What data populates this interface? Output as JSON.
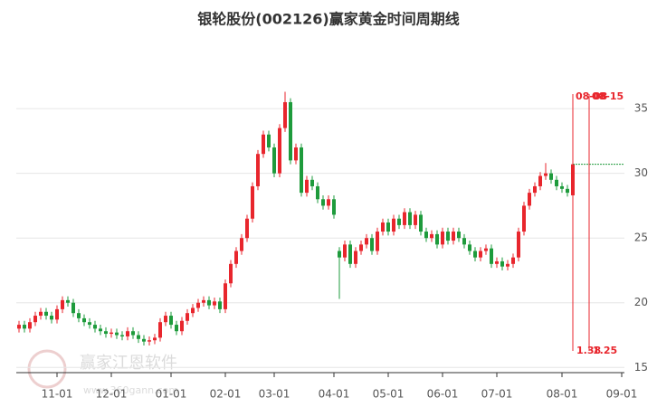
{
  "chart_data": {
    "type": "candlestick",
    "title": "银轮股份(002126)赢家黄金时间周期线",
    "watermark": {
      "name": "赢家江恩软件",
      "url": "www.360gann.com"
    },
    "categories": [
      null,
      null,
      null,
      null,
      null,
      null,
      null,
      "11-01",
      null,
      null,
      null,
      null,
      null,
      null,
      null,
      null,
      null,
      "12-01",
      null,
      null,
      null,
      null,
      null,
      null,
      null,
      null,
      null,
      null,
      "01-01",
      null,
      null,
      null,
      null,
      null,
      null,
      null,
      null,
      null,
      "02-01",
      null,
      null,
      null,
      null,
      null,
      null,
      null,
      null,
      "03-01",
      null,
      null,
      null,
      null,
      null,
      null,
      null,
      null,
      null,
      null,
      "04-01",
      null,
      null,
      null,
      null,
      null,
      null,
      null,
      null,
      null,
      "05-01",
      null,
      null,
      null,
      null,
      null,
      null,
      null,
      null,
      null,
      "06-01",
      null,
      null,
      null,
      null,
      null,
      null,
      null,
      null,
      null,
      "07-01",
      null,
      null,
      null,
      null,
      null,
      null,
      null,
      null,
      null,
      null,
      null,
      "08-01",
      null,
      null,
      null,
      null,
      null,
      null,
      null,
      null,
      null,
      null,
      "09-01"
    ],
    "ohlc": [
      [
        18.0,
        18.6,
        17.7,
        18.3
      ],
      [
        18.3,
        18.6,
        17.7,
        18.0
      ],
      [
        18.0,
        18.8,
        17.7,
        18.5
      ],
      [
        18.5,
        19.3,
        18.2,
        19.0
      ],
      [
        19.0,
        19.6,
        18.7,
        19.3
      ],
      [
        19.3,
        19.6,
        18.7,
        19.0
      ],
      [
        19.0,
        19.3,
        18.4,
        18.7
      ],
      [
        18.7,
        19.8,
        18.4,
        19.5
      ],
      [
        19.5,
        20.5,
        19.2,
        20.2
      ],
      [
        20.2,
        20.5,
        19.7,
        20.0
      ],
      [
        20.0,
        20.3,
        18.9,
        19.2
      ],
      [
        19.2,
        19.5,
        18.5,
        18.8
      ],
      [
        18.8,
        19.1,
        18.2,
        18.5
      ],
      [
        18.5,
        18.8,
        18.0,
        18.3
      ],
      [
        18.3,
        18.6,
        17.7,
        18.0
      ],
      [
        18.0,
        18.3,
        17.5,
        17.8
      ],
      [
        17.8,
        18.1,
        17.3,
        17.6
      ],
      [
        17.6,
        18.0,
        17.3,
        17.7
      ],
      [
        17.7,
        18.0,
        17.2,
        17.5
      ],
      [
        17.5,
        17.8,
        17.1,
        17.4
      ],
      [
        17.4,
        18.1,
        17.1,
        17.8
      ],
      [
        17.8,
        18.1,
        17.2,
        17.5
      ],
      [
        17.5,
        17.8,
        16.9,
        17.2
      ],
      [
        17.2,
        17.5,
        16.7,
        17.0
      ],
      [
        17.0,
        17.4,
        16.7,
        17.1
      ],
      [
        17.1,
        17.6,
        16.8,
        17.3
      ],
      [
        17.3,
        18.8,
        17.0,
        18.5
      ],
      [
        18.5,
        19.3,
        18.2,
        19.0
      ],
      [
        19.0,
        19.3,
        18.0,
        18.3
      ],
      [
        18.3,
        18.6,
        17.5,
        17.8
      ],
      [
        17.8,
        18.9,
        17.5,
        18.6
      ],
      [
        18.6,
        19.5,
        18.3,
        19.2
      ],
      [
        19.2,
        19.9,
        18.9,
        19.6
      ],
      [
        19.6,
        20.3,
        19.3,
        20.0
      ],
      [
        20.0,
        20.5,
        19.7,
        20.2
      ],
      [
        20.2,
        20.5,
        19.5,
        19.8
      ],
      [
        19.8,
        20.4,
        19.5,
        20.1
      ],
      [
        20.1,
        20.4,
        19.2,
        19.5
      ],
      [
        19.5,
        21.8,
        19.2,
        21.5
      ],
      [
        21.5,
        23.3,
        21.2,
        23.0
      ],
      [
        23.0,
        24.3,
        22.7,
        24.0
      ],
      [
        24.0,
        25.3,
        23.7,
        25.0
      ],
      [
        25.0,
        26.8,
        24.7,
        26.5
      ],
      [
        26.5,
        29.3,
        26.2,
        29.0
      ],
      [
        29.0,
        31.8,
        28.7,
        31.5
      ],
      [
        31.5,
        33.3,
        31.2,
        33.0
      ],
      [
        33.0,
        33.3,
        31.7,
        32.0
      ],
      [
        32.0,
        32.3,
        29.7,
        30.0
      ],
      [
        30.0,
        33.8,
        29.7,
        33.5
      ],
      [
        33.5,
        36.3,
        33.2,
        35.5
      ],
      [
        35.5,
        35.8,
        30.7,
        31.0
      ],
      [
        31.0,
        32.3,
        30.7,
        32.0
      ],
      [
        32.0,
        32.3,
        28.2,
        28.5
      ],
      [
        28.5,
        29.8,
        28.2,
        29.5
      ],
      [
        29.5,
        29.8,
        28.7,
        29.0
      ],
      [
        29.0,
        29.3,
        27.7,
        28.0
      ],
      [
        28.0,
        28.3,
        27.2,
        27.5
      ],
      [
        27.5,
        28.3,
        27.2,
        28.0
      ],
      [
        28.0,
        28.3,
        26.5,
        26.8
      ],
      [
        24.0,
        24.3,
        20.3,
        23.5
      ],
      [
        23.5,
        24.8,
        23.2,
        24.5
      ],
      [
        24.5,
        24.8,
        22.7,
        23.0
      ],
      [
        23.0,
        24.3,
        22.7,
        24.0
      ],
      [
        24.0,
        24.8,
        23.7,
        24.5
      ],
      [
        24.5,
        25.3,
        24.2,
        25.0
      ],
      [
        25.0,
        25.3,
        23.7,
        24.0
      ],
      [
        24.0,
        25.8,
        23.7,
        25.5
      ],
      [
        25.5,
        26.5,
        25.2,
        26.2
      ],
      [
        26.2,
        26.5,
        25.2,
        25.5
      ],
      [
        25.5,
        26.8,
        25.2,
        26.5
      ],
      [
        26.5,
        26.8,
        25.7,
        26.0
      ],
      [
        26.0,
        27.3,
        25.7,
        27.0
      ],
      [
        27.0,
        27.3,
        25.7,
        26.0
      ],
      [
        26.0,
        27.1,
        25.7,
        26.8
      ],
      [
        26.8,
        27.1,
        25.2,
        25.5
      ],
      [
        25.5,
        25.8,
        24.7,
        25.0
      ],
      [
        25.0,
        25.6,
        24.7,
        25.3
      ],
      [
        25.3,
        25.6,
        24.2,
        24.5
      ],
      [
        24.5,
        25.8,
        24.2,
        25.5
      ],
      [
        25.5,
        25.8,
        24.5,
        24.8
      ],
      [
        24.8,
        25.8,
        24.5,
        25.5
      ],
      [
        25.5,
        25.8,
        24.7,
        25.0
      ],
      [
        25.0,
        25.3,
        24.2,
        24.5
      ],
      [
        24.5,
        24.8,
        23.7,
        24.0
      ],
      [
        24.0,
        24.3,
        23.2,
        23.5
      ],
      [
        23.5,
        24.3,
        23.2,
        24.0
      ],
      [
        24.0,
        24.5,
        23.7,
        24.2
      ],
      [
        24.2,
        24.5,
        22.7,
        23.0
      ],
      [
        23.0,
        23.5,
        22.7,
        23.2
      ],
      [
        23.2,
        23.5,
        22.5,
        22.8
      ],
      [
        22.8,
        23.3,
        22.5,
        23.0
      ],
      [
        23.0,
        23.8,
        22.7,
        23.5
      ],
      [
        23.5,
        25.8,
        23.2,
        25.5
      ],
      [
        25.5,
        27.8,
        25.2,
        27.5
      ],
      [
        27.5,
        28.8,
        27.2,
        28.5
      ],
      [
        28.5,
        29.3,
        28.2,
        29.0
      ],
      [
        29.0,
        30.1,
        28.7,
        29.8
      ],
      [
        29.8,
        30.8,
        29.5,
        30.0
      ],
      [
        30.0,
        30.3,
        29.2,
        29.5
      ],
      [
        29.5,
        29.8,
        28.7,
        29.0
      ],
      [
        29.0,
        29.3,
        28.5,
        28.8
      ],
      [
        28.8,
        29.1,
        28.2,
        28.5
      ],
      [
        28.3,
        30.9,
        28.0,
        30.7
      ],
      null,
      null,
      null,
      null,
      null,
      null,
      null,
      null,
      null
    ],
    "up_color": "#e8262d",
    "down_color": "#1e9b3c",
    "ylim": [
      14.6,
      40.6
    ],
    "yticks": [
      15,
      20,
      25,
      30,
      35
    ],
    "grid": true,
    "cycle_lines": [
      {
        "x": 102,
        "top": "08-08",
        "bottom": "1.38"
      },
      {
        "x": 105,
        "top": "08-15",
        "bottom": "1.25"
      }
    ],
    "cycle_color": "#e8262d"
  }
}
